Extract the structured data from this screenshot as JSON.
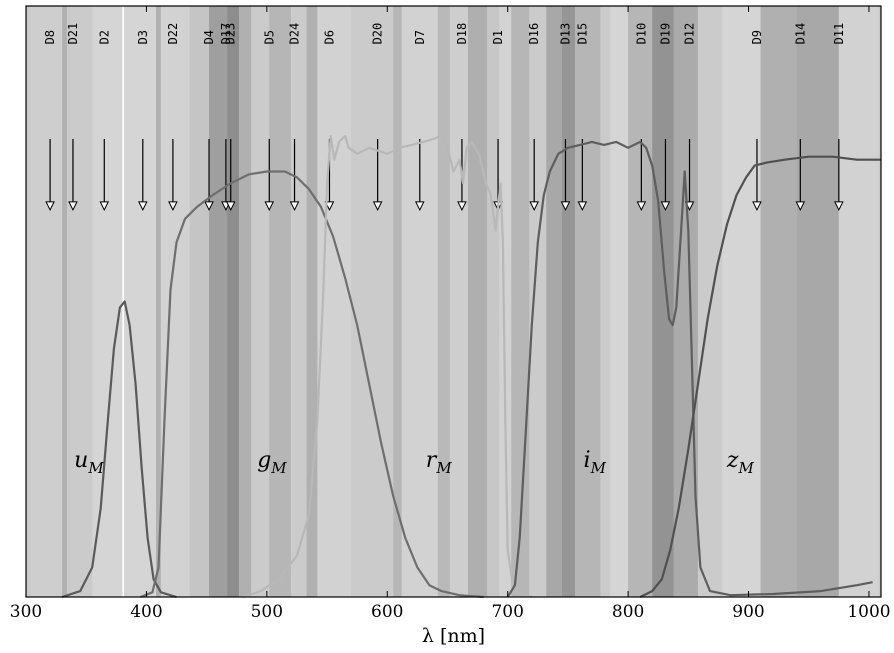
{
  "chart_data": {
    "type": "line",
    "title": "",
    "xlabel": "λ  [nm]",
    "ylabel": "",
    "xlim": [
      300,
      1010
    ],
    "ylim": [
      0,
      1
    ],
    "x_ticks": [
      300,
      400,
      500,
      600,
      700,
      800,
      900,
      1000
    ],
    "grid": false,
    "bands": [
      {
        "x0": 303,
        "x1": 330,
        "darkness": 0.28
      },
      {
        "x0": 330,
        "x1": 334,
        "darkness": 0.45
      },
      {
        "x0": 334,
        "x1": 355,
        "darkness": 0.3
      },
      {
        "x0": 355,
        "x1": 380,
        "darkness": 0.24
      },
      {
        "x0": 380,
        "x1": 381.5,
        "darkness": 0.0
      },
      {
        "x0": 381.5,
        "x1": 408,
        "darkness": 0.24
      },
      {
        "x0": 408,
        "x1": 412,
        "darkness": 0.45
      },
      {
        "x0": 412,
        "x1": 436,
        "darkness": 0.26
      },
      {
        "x0": 436,
        "x1": 452,
        "darkness": 0.33
      },
      {
        "x0": 452,
        "x1": 467,
        "darkness": 0.55
      },
      {
        "x0": 467,
        "x1": 477,
        "darkness": 0.65
      },
      {
        "x0": 477,
        "x1": 487,
        "darkness": 0.45
      },
      {
        "x0": 487,
        "x1": 502,
        "darkness": 0.3
      },
      {
        "x0": 502,
        "x1": 520,
        "darkness": 0.42
      },
      {
        "x0": 520,
        "x1": 533,
        "darkness": 0.3
      },
      {
        "x0": 533,
        "x1": 542,
        "darkness": 0.45
      },
      {
        "x0": 542,
        "x1": 570,
        "darkness": 0.26
      },
      {
        "x0": 570,
        "x1": 605,
        "darkness": 0.3
      },
      {
        "x0": 605,
        "x1": 612,
        "darkness": 0.42
      },
      {
        "x0": 612,
        "x1": 642,
        "darkness": 0.26
      },
      {
        "x0": 642,
        "x1": 652,
        "darkness": 0.4
      },
      {
        "x0": 652,
        "x1": 667,
        "darkness": 0.28
      },
      {
        "x0": 667,
        "x1": 683,
        "darkness": 0.46
      },
      {
        "x0": 683,
        "x1": 693,
        "darkness": 0.32
      },
      {
        "x0": 693,
        "x1": 703,
        "darkness": 0.26
      },
      {
        "x0": 703,
        "x1": 718,
        "darkness": 0.42
      },
      {
        "x0": 718,
        "x1": 732,
        "darkness": 0.3
      },
      {
        "x0": 732,
        "x1": 745,
        "darkness": 0.5
      },
      {
        "x0": 745,
        "x1": 756,
        "darkness": 0.6
      },
      {
        "x0": 756,
        "x1": 777,
        "darkness": 0.42
      },
      {
        "x0": 777,
        "x1": 785,
        "darkness": 0.3
      },
      {
        "x0": 785,
        "x1": 800,
        "darkness": 0.24
      },
      {
        "x0": 800,
        "x1": 820,
        "darkness": 0.42
      },
      {
        "x0": 820,
        "x1": 838,
        "darkness": 0.62
      },
      {
        "x0": 838,
        "x1": 858,
        "darkness": 0.48
      },
      {
        "x0": 858,
        "x1": 878,
        "darkness": 0.3
      },
      {
        "x0": 878,
        "x1": 910,
        "darkness": 0.24
      },
      {
        "x0": 910,
        "x1": 940,
        "darkness": 0.45
      },
      {
        "x0": 940,
        "x1": 975,
        "darkness": 0.5
      },
      {
        "x0": 975,
        "x1": 1008,
        "darkness": 0.26
      }
    ],
    "markers": [
      {
        "label": "D8",
        "x": 320
      },
      {
        "label": "D21",
        "x": 339
      },
      {
        "label": "D2",
        "x": 365
      },
      {
        "label": "D3",
        "x": 397
      },
      {
        "label": "D22",
        "x": 422
      },
      {
        "label": "D4",
        "x": 452
      },
      {
        "label": "D17",
        "x": 466
      },
      {
        "label": "D23",
        "x": 470
      },
      {
        "label": "D5",
        "x": 502
      },
      {
        "label": "D24",
        "x": 523
      },
      {
        "label": "D6",
        "x": 552
      },
      {
        "label": "D20",
        "x": 592
      },
      {
        "label": "D7",
        "x": 627
      },
      {
        "label": "D18",
        "x": 662
      },
      {
        "label": "D1",
        "x": 692
      },
      {
        "label": "D16",
        "x": 722
      },
      {
        "label": "D13",
        "x": 748
      },
      {
        "label": "D15",
        "x": 762
      },
      {
        "label": "D10",
        "x": 811
      },
      {
        "label": "D19",
        "x": 831
      },
      {
        "label": "D12",
        "x": 851
      },
      {
        "label": "D9",
        "x": 907
      },
      {
        "label": "D14",
        "x": 943
      },
      {
        "label": "D11",
        "x": 975
      }
    ],
    "series": [
      {
        "label": "u",
        "sub": "M",
        "color": "#5a5a5a",
        "label_x": 340,
        "label_y": 0.22,
        "points": [
          [
            330,
            0
          ],
          [
            345,
            0.01
          ],
          [
            355,
            0.05
          ],
          [
            362,
            0.15
          ],
          [
            368,
            0.3
          ],
          [
            373,
            0.42
          ],
          [
            378,
            0.49
          ],
          [
            382,
            0.5
          ],
          [
            386,
            0.46
          ],
          [
            391,
            0.36
          ],
          [
            396,
            0.22
          ],
          [
            401,
            0.1
          ],
          [
            406,
            0.03
          ],
          [
            412,
            0.008
          ],
          [
            425,
            0
          ]
        ]
      },
      {
        "label": "g",
        "sub": "M",
        "color": "#6e6e6e",
        "label_x": 492,
        "label_y": 0.22,
        "points": [
          [
            395,
            0
          ],
          [
            405,
            0.008
          ],
          [
            410,
            0.05
          ],
          [
            415,
            0.3
          ],
          [
            420,
            0.52
          ],
          [
            425,
            0.6
          ],
          [
            432,
            0.64
          ],
          [
            442,
            0.66
          ],
          [
            455,
            0.68
          ],
          [
            470,
            0.7
          ],
          [
            485,
            0.715
          ],
          [
            500,
            0.72
          ],
          [
            515,
            0.72
          ],
          [
            525,
            0.71
          ],
          [
            535,
            0.69
          ],
          [
            545,
            0.66
          ],
          [
            555,
            0.61
          ],
          [
            565,
            0.54
          ],
          [
            575,
            0.46
          ],
          [
            585,
            0.36
          ],
          [
            595,
            0.26
          ],
          [
            605,
            0.17
          ],
          [
            615,
            0.1
          ],
          [
            625,
            0.05
          ],
          [
            635,
            0.02
          ],
          [
            645,
            0.01
          ],
          [
            660,
            0.003
          ],
          [
            680,
            0
          ]
        ]
      },
      {
        "label": "r",
        "sub": "M",
        "color": "#b8b8b8",
        "label_x": 632,
        "label_y": 0.22,
        "points": [
          [
            480,
            0
          ],
          [
            495,
            0.01
          ],
          [
            510,
            0.03
          ],
          [
            525,
            0.07
          ],
          [
            535,
            0.14
          ],
          [
            542,
            0.3
          ],
          [
            547,
            0.52
          ],
          [
            550,
            0.7
          ],
          [
            553,
            0.78
          ],
          [
            556,
            0.74
          ],
          [
            560,
            0.77
          ],
          [
            565,
            0.78
          ],
          [
            568,
            0.76
          ],
          [
            575,
            0.75
          ],
          [
            585,
            0.76
          ],
          [
            600,
            0.75
          ],
          [
            610,
            0.76
          ],
          [
            620,
            0.765
          ],
          [
            630,
            0.77
          ],
          [
            638,
            0.775
          ],
          [
            645,
            0.78
          ],
          [
            650,
            0.76
          ],
          [
            655,
            0.72
          ],
          [
            660,
            0.74
          ],
          [
            663,
            0.7
          ],
          [
            666,
            0.76
          ],
          [
            670,
            0.77
          ],
          [
            676,
            0.75
          ],
          [
            682,
            0.7
          ],
          [
            686,
            0.68
          ],
          [
            690,
            0.62
          ],
          [
            692,
            0.66
          ],
          [
            694,
            0.7
          ],
          [
            696,
            0.6
          ],
          [
            698,
            0.3
          ],
          [
            700,
            0.08
          ],
          [
            705,
            0.01
          ],
          [
            720,
            0
          ]
        ]
      },
      {
        "label": "i",
        "sub": "M",
        "color": "#5e5e5e",
        "label_x": 763,
        "label_y": 0.22,
        "points": [
          [
            700,
            0
          ],
          [
            706,
            0.02
          ],
          [
            710,
            0.1
          ],
          [
            715,
            0.28
          ],
          [
            720,
            0.46
          ],
          [
            725,
            0.6
          ],
          [
            730,
            0.68
          ],
          [
            735,
            0.72
          ],
          [
            742,
            0.75
          ],
          [
            750,
            0.76
          ],
          [
            760,
            0.765
          ],
          [
            770,
            0.77
          ],
          [
            780,
            0.765
          ],
          [
            790,
            0.77
          ],
          [
            800,
            0.76
          ],
          [
            810,
            0.77
          ],
          [
            815,
            0.76
          ],
          [
            820,
            0.73
          ],
          [
            825,
            0.67
          ],
          [
            830,
            0.55
          ],
          [
            834,
            0.47
          ],
          [
            837,
            0.46
          ],
          [
            840,
            0.49
          ],
          [
            844,
            0.62
          ],
          [
            847,
            0.72
          ],
          [
            850,
            0.62
          ],
          [
            853,
            0.4
          ],
          [
            856,
            0.17
          ],
          [
            860,
            0.05
          ],
          [
            868,
            0.01
          ],
          [
            885,
            0.003
          ],
          [
            920,
            0.005
          ],
          [
            960,
            0.01
          ],
          [
            990,
            0.02
          ],
          [
            1003,
            0.025
          ]
        ]
      },
      {
        "label": "z",
        "sub": "M",
        "color": "#505050",
        "label_x": 882,
        "label_y": 0.22,
        "points": [
          [
            810,
            0
          ],
          [
            820,
            0.01
          ],
          [
            828,
            0.03
          ],
          [
            835,
            0.08
          ],
          [
            842,
            0.15
          ],
          [
            850,
            0.25
          ],
          [
            858,
            0.36
          ],
          [
            866,
            0.47
          ],
          [
            874,
            0.56
          ],
          [
            882,
            0.63
          ],
          [
            890,
            0.68
          ],
          [
            898,
            0.71
          ],
          [
            905,
            0.73
          ],
          [
            915,
            0.735
          ],
          [
            930,
            0.74
          ],
          [
            950,
            0.745
          ],
          [
            970,
            0.745
          ],
          [
            990,
            0.74
          ],
          [
            1010,
            0.74
          ]
        ]
      }
    ]
  }
}
